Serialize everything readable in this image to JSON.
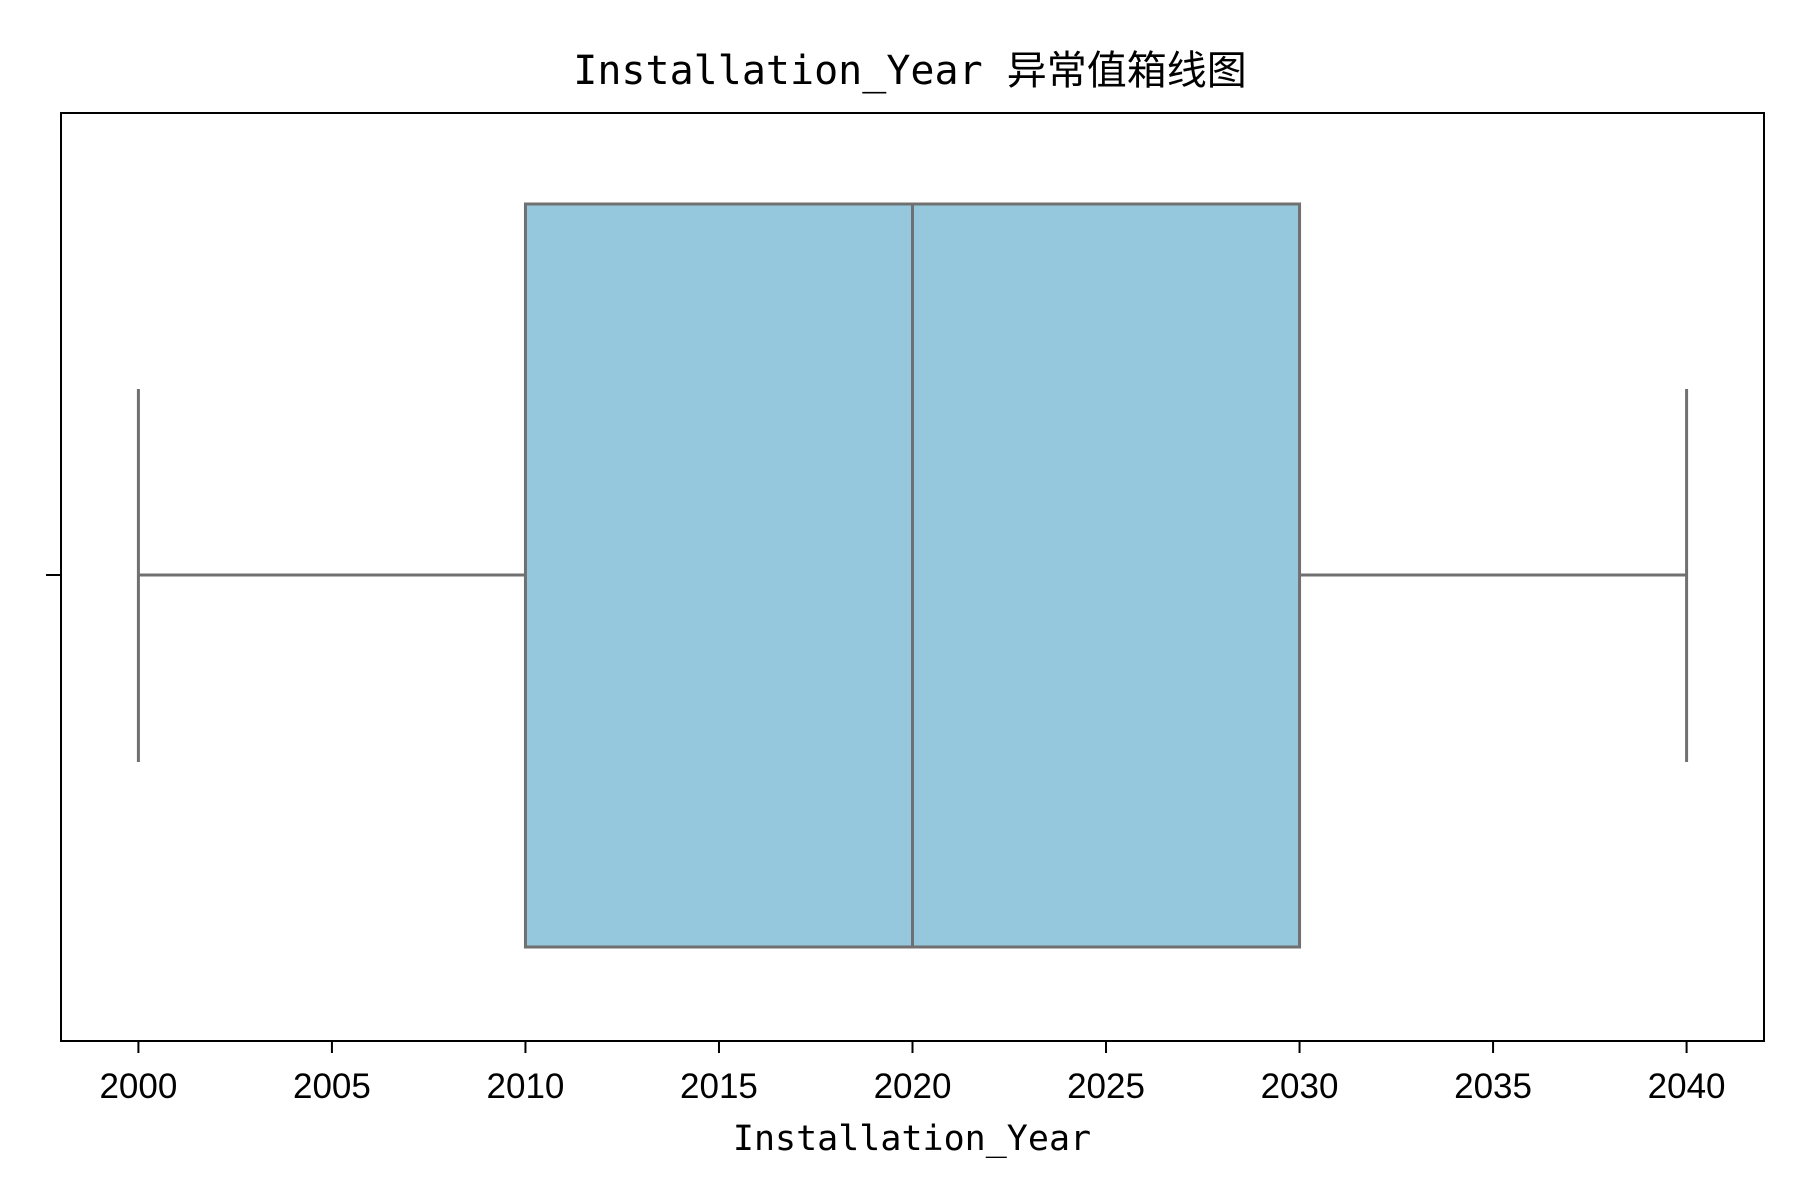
{
  "chart_data": {
    "type": "box",
    "title": "Installation_Year 异常值箱线图",
    "xlabel": "Installation_Year",
    "ylabel": "",
    "orientation": "horizontal",
    "xlim": [
      1998,
      2042
    ],
    "x_ticks": [
      2000,
      2005,
      2010,
      2015,
      2020,
      2025,
      2030,
      2035,
      2040
    ],
    "x_tick_labels": [
      "2000",
      "2005",
      "2010",
      "2015",
      "2020",
      "2025",
      "2030",
      "2035",
      "2040"
    ],
    "box": {
      "whisker_low": 2000,
      "q1": 2010,
      "median": 2020,
      "q3": 2030,
      "whisker_high": 2040,
      "outliers": []
    },
    "colors": {
      "box_fill": "#96c8dd",
      "box_line": "#707070",
      "axes": "#000000"
    },
    "grid": false,
    "legend": "none"
  }
}
